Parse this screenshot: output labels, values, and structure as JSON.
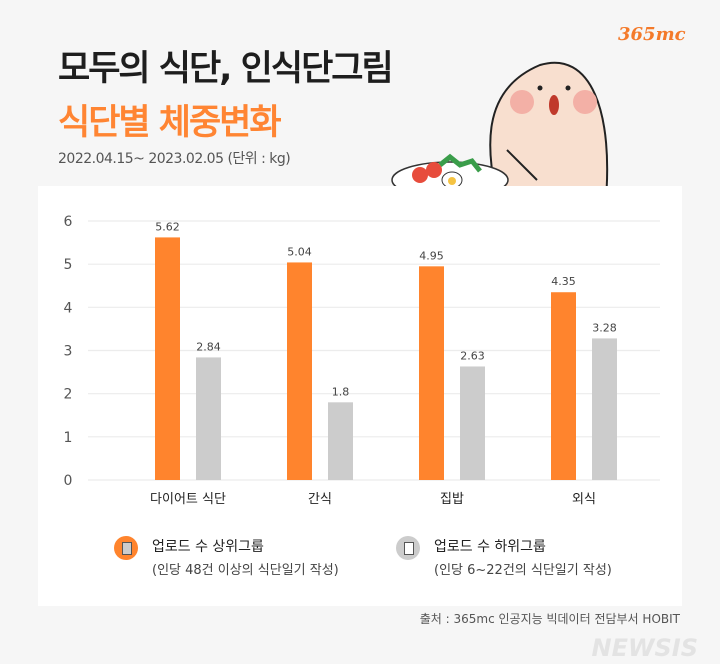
{
  "header": {
    "title": "모두의 식단, 인식단그림",
    "subtitle": "식단별 체중변화",
    "period": "2022.04.15~ 2023.02.05 (단위 : kg)",
    "logo": "365mc"
  },
  "chart_data": {
    "type": "bar",
    "categories": [
      "다이어트 식단",
      "간식",
      "집밥",
      "외식"
    ],
    "series": [
      {
        "name": "업로드 수 상위그룹",
        "values": [
          5.62,
          5.04,
          4.95,
          4.35
        ],
        "color": "#ff842d"
      },
      {
        "name": "업로드 수 하위그룹",
        "values": [
          2.84,
          1.8,
          2.63,
          3.28
        ],
        "color": "#cccccc"
      }
    ],
    "value_labels": [
      [
        "5.62",
        "5.04",
        "4.95",
        "4.35"
      ],
      [
        "2.84",
        "1.8",
        "2.63",
        "3.28"
      ]
    ],
    "yticks": [
      "0",
      "1",
      "2",
      "3",
      "4",
      "5",
      "6"
    ],
    "ylim": [
      0,
      6
    ],
    "grid": true,
    "legend_placement": "bottom"
  },
  "legend": [
    {
      "label": "업로드 수 상위그룹",
      "note": "(인당 48건 이상의 식단일기 작성)",
      "icon": "document-icon",
      "color": "#ff842d"
    },
    {
      "label": "업로드 수 하위그룹",
      "note": "(인당 6~22건의 식단일기 작성)",
      "icon": "document-icon",
      "color": "#cccccc"
    }
  ],
  "source": "출처 : 365mc 인공지능 빅데이터 전담부서 HOBIT",
  "watermark": "NEWSIS"
}
